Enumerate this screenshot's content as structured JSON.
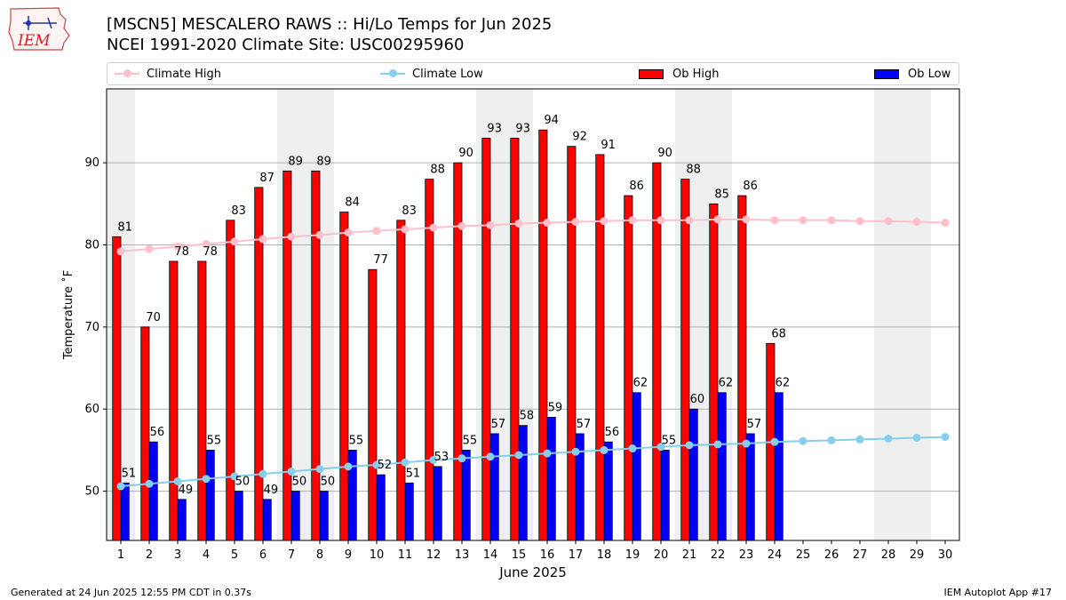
{
  "title": {
    "line1": "[MSCN5] MESCALERO RAWS :: Hi/Lo Temps for Jun 2025",
    "line2": "NCEI 1991-2020 Climate Site: USC00295960"
  },
  "logo_text": "IEM",
  "footer": {
    "left": "Generated at 24 Jun 2025 12:55 PM CDT in 0.37s",
    "right": "IEM Autoplot App #17"
  },
  "legend": {
    "climate_high": "Climate High",
    "climate_low": "Climate Low",
    "ob_high": "Ob High",
    "ob_low": "Ob Low"
  },
  "colors": {
    "ob_high": "#ff0000",
    "ob_low": "#0000ff",
    "climate_high": "#ffc0cb",
    "climate_low": "#87ceeb",
    "weekend_shade": "#efefef",
    "grid": "#b0b0b0"
  },
  "chart_data": {
    "type": "bar",
    "xlabel": "June 2025",
    "ylabel": "Temperature ˚F",
    "ylim": [
      44,
      99
    ],
    "yticks": [
      50,
      60,
      70,
      80,
      90
    ],
    "categories": [
      "1",
      "2",
      "3",
      "4",
      "5",
      "6",
      "7",
      "8",
      "9",
      "10",
      "11",
      "12",
      "13",
      "14",
      "15",
      "16",
      "17",
      "18",
      "19",
      "20",
      "21",
      "22",
      "23",
      "24",
      "25",
      "26",
      "27",
      "28",
      "29",
      "30"
    ],
    "weekend_days": [
      1,
      7,
      8,
      14,
      15,
      21,
      22,
      28,
      29
    ],
    "series": [
      {
        "name": "Ob High",
        "kind": "bar",
        "values": [
          81,
          70,
          78,
          78,
          83,
          87,
          89,
          89,
          84,
          77,
          83,
          88,
          90,
          93,
          93,
          94,
          92,
          91,
          86,
          90,
          88,
          85,
          86,
          68,
          null,
          null,
          null,
          null,
          null,
          null
        ]
      },
      {
        "name": "Ob Low",
        "kind": "bar",
        "values": [
          51,
          56,
          49,
          55,
          50,
          49,
          50,
          50,
          55,
          52,
          51,
          53,
          55,
          57,
          58,
          59,
          57,
          56,
          62,
          55,
          60,
          62,
          57,
          62,
          null,
          null,
          null,
          null,
          null,
          null
        ]
      },
      {
        "name": "Climate High",
        "kind": "line",
        "values": [
          79.2,
          79.5,
          79.8,
          80.1,
          80.4,
          80.7,
          81.0,
          81.2,
          81.5,
          81.7,
          81.9,
          82.1,
          82.3,
          82.4,
          82.6,
          82.7,
          82.8,
          82.9,
          83.0,
          83.0,
          83.0,
          83.1,
          83.1,
          83.0,
          83.0,
          83.0,
          82.9,
          82.9,
          82.8,
          82.7
        ]
      },
      {
        "name": "Climate Low",
        "kind": "line",
        "values": [
          50.6,
          50.9,
          51.2,
          51.5,
          51.8,
          52.1,
          52.4,
          52.7,
          53.0,
          53.2,
          53.5,
          53.8,
          54.0,
          54.2,
          54.4,
          54.6,
          54.8,
          55.0,
          55.2,
          55.4,
          55.6,
          55.7,
          55.8,
          56.0,
          56.1,
          56.2,
          56.3,
          56.4,
          56.5,
          56.6
        ]
      }
    ]
  }
}
